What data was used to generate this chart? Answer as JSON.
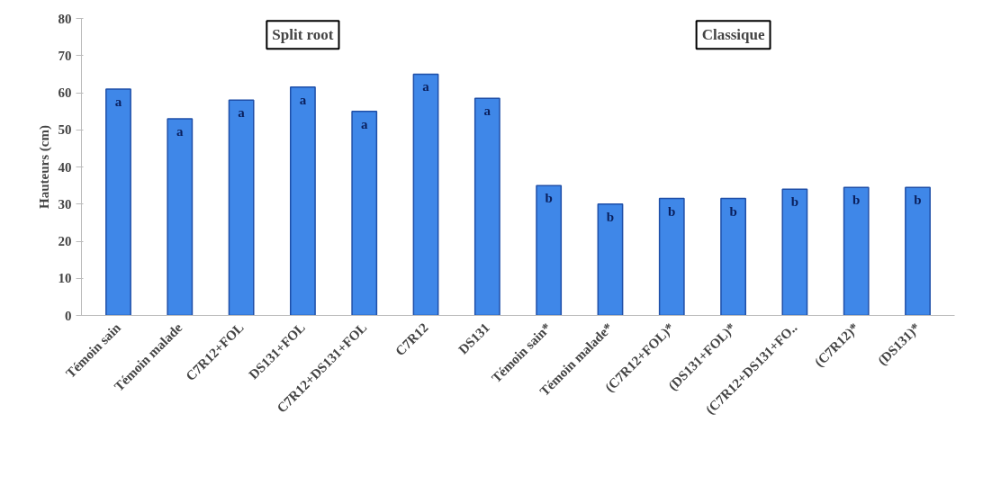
{
  "chart_data": {
    "type": "bar",
    "ylabel": "Hauteurs (cm)",
    "categories": [
      "Témoin sain",
      "Témoin malade",
      "C7R12+FOL",
      "DS131+FOL",
      "C7R12+DS131+FOL",
      "C7R12",
      "DS131",
      "Témoin sain*",
      "Témoin malade*",
      "(C7R12+FOL)*",
      "(DS131+FOL)*",
      "(C7R12+DS131+FO..",
      "(C7R12)*",
      "(DS131)*"
    ],
    "values": [
      61,
      53,
      58,
      61.5,
      55,
      65,
      58.5,
      35,
      30,
      31.5,
      31.5,
      34,
      34.5,
      34.5
    ],
    "value_labels": [
      "a",
      "a",
      "a",
      "a",
      "a",
      "a",
      "a",
      "b",
      "b",
      "b",
      "b",
      "b",
      "b",
      "b"
    ],
    "color": "#3f87e8",
    "ylim": [
      0,
      80
    ],
    "yticks": [
      0,
      10,
      20,
      30,
      40,
      50,
      60,
      70,
      80
    ],
    "annotations": [
      "Split root",
      "Classique"
    ],
    "grid": false
  }
}
